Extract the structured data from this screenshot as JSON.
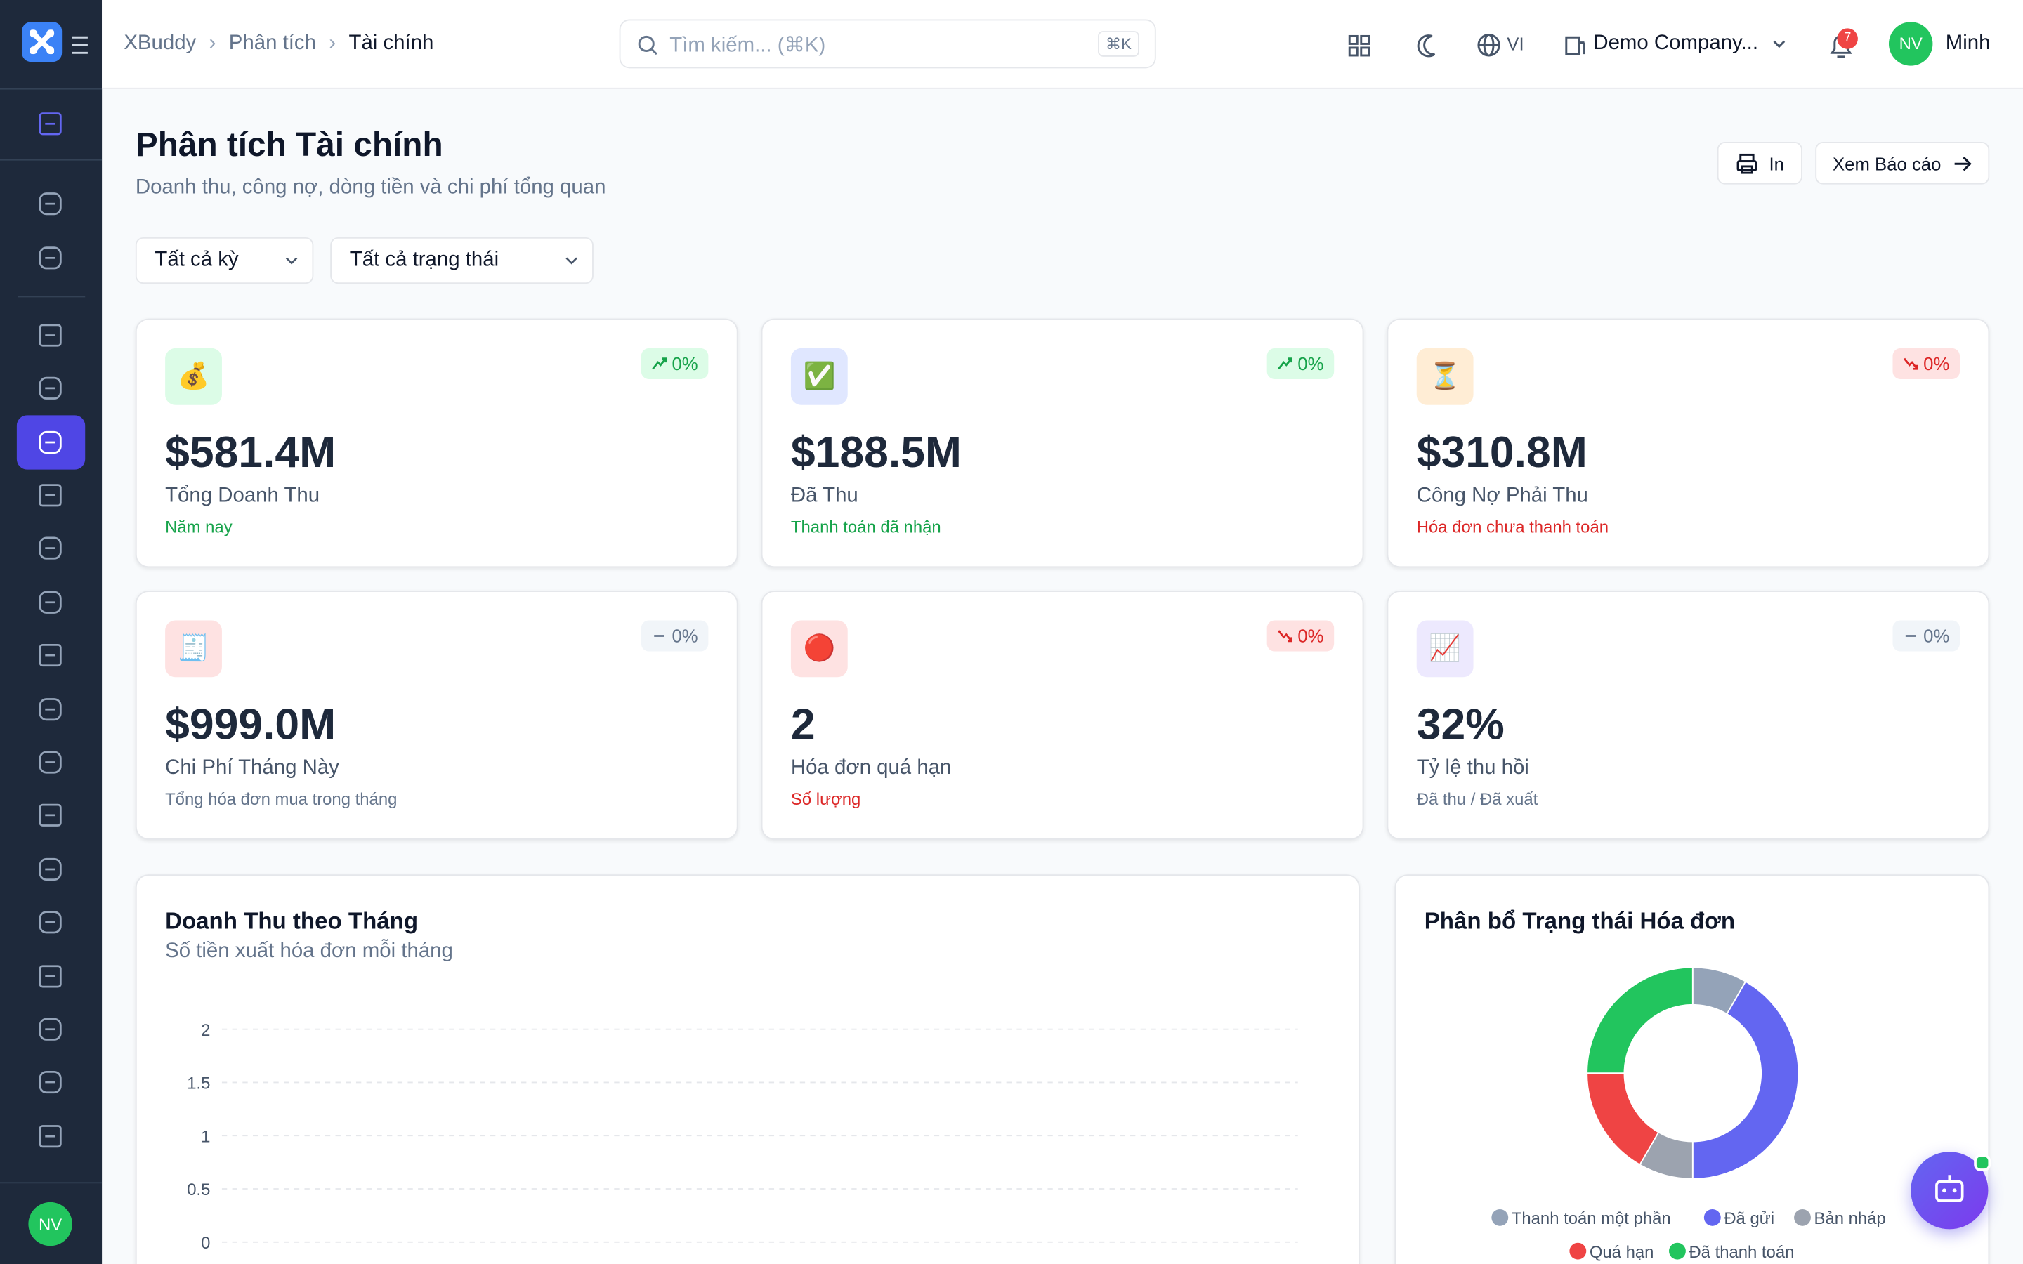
{
  "header": {
    "brand": "XBuddy",
    "breadcrumbs": [
      "Phân tích",
      "Tài chính"
    ],
    "search_placeholder": "Tìm kiếm... (⌘K)",
    "search_shortcut": "⌘K",
    "language": "VI",
    "company": "Demo Company...",
    "notifications": "7",
    "user_initials": "NV",
    "user_name": "Minh"
  },
  "page": {
    "title": "Phân tích Tài chính",
    "subtitle": "Doanh thu, công nợ, dòng tiền và chi phí tổng quan",
    "buttons": [
      "In",
      "Xem Báo cáo"
    ],
    "filters": [
      "Tất cả kỳ",
      "Tất cả trạng thái"
    ]
  },
  "kpis": [
    {
      "icon": "💰",
      "icon_bg": "#dcfce7",
      "value": "$581.4M",
      "label": "Tổng Doanh Thu",
      "sub": "Năm nay",
      "sub_color": "#16a34a",
      "change": "0%",
      "trend": "up"
    },
    {
      "icon": "✅",
      "icon_bg": "#e0e7ff",
      "value": "$188.5M",
      "label": "Đã Thu",
      "sub": "Thanh toán đã nhận",
      "sub_color": "#16a34a",
      "change": "0%",
      "trend": "up"
    },
    {
      "icon": "⏳",
      "icon_bg": "#ffedd5",
      "value": "$310.8M",
      "label": "Công Nợ Phải Thu",
      "sub": "Hóa đơn chưa thanh toán",
      "sub_color": "#dc2626",
      "change": "0%",
      "trend": "down"
    },
    {
      "icon": "🧾",
      "icon_bg": "#fee2e2",
      "value": "$999.0M",
      "label": "Chi Phí Tháng Này",
      "sub": "Tổng hóa đơn mua trong tháng",
      "sub_color": "#64748b",
      "change": "0%",
      "trend": "flat"
    },
    {
      "icon": "🔴",
      "icon_bg": "#fee2e2",
      "value": "2",
      "label": "Hóa đơn quá hạn",
      "sub": "Số lượng",
      "sub_color": "#dc2626",
      "change": "0%",
      "trend": "down"
    },
    {
      "icon": "📈",
      "icon_bg": "#ede9fe",
      "value": "32%",
      "label": "Tỷ lệ thu hồi",
      "sub": "Đã thu / Đã xuất",
      "sub_color": "#64748b",
      "change": "0%",
      "trend": "flat"
    }
  ],
  "chart_data": [
    {
      "type": "line",
      "title": "Doanh Thu theo Tháng",
      "subtitle": "Số tiền xuất hóa đơn mỗi tháng",
      "ylim": [
        0,
        2
      ],
      "yticks": [
        0,
        0.5,
        1,
        1.5,
        2
      ],
      "grid": true
    },
    {
      "type": "donut",
      "title": "Phân bổ Trạng thái Hóa đơn",
      "categories": [
        "Thanh toán một phần",
        "Đã gửi",
        "Bản nháp",
        "Quá hạn",
        "Đã thanh toán"
      ],
      "values": [
        1,
        5,
        1,
        2,
        3
      ],
      "colors": [
        "#94a3b8",
        "#6366f1",
        "#9ca3af",
        "#ef4444",
        "#22c55e"
      ]
    }
  ]
}
